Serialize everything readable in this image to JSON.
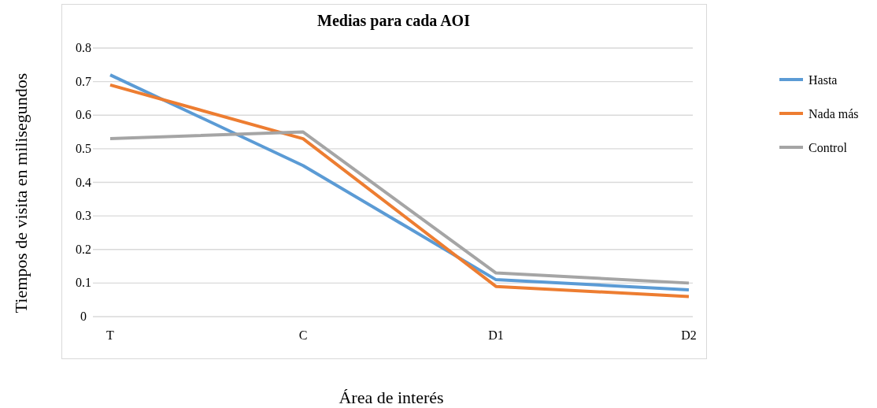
{
  "chart_data": {
    "type": "line",
    "title": "Medias para cada AOI",
    "xlabel": "Área de interés",
    "ylabel": "Tiempos de visita en milisegundos",
    "categories": [
      "T",
      "C",
      "D1",
      "D2"
    ],
    "series": [
      {
        "name": "Hasta",
        "color": "#5b9bd5",
        "values": [
          0.72,
          0.45,
          0.11,
          0.08
        ]
      },
      {
        "name": "Nada más",
        "color": "#ed7d31",
        "values": [
          0.69,
          0.53,
          0.09,
          0.06
        ]
      },
      {
        "name": "Control",
        "color": "#a5a5a5",
        "values": [
          0.53,
          0.55,
          0.13,
          0.1
        ]
      }
    ],
    "ylim": [
      0,
      0.8
    ],
    "yticks": [
      0,
      0.1,
      0.2,
      0.3,
      0.4,
      0.5,
      0.6,
      0.7,
      0.8
    ],
    "grid": "y",
    "legend": "right",
    "marker": "none",
    "line_style": "solid"
  }
}
